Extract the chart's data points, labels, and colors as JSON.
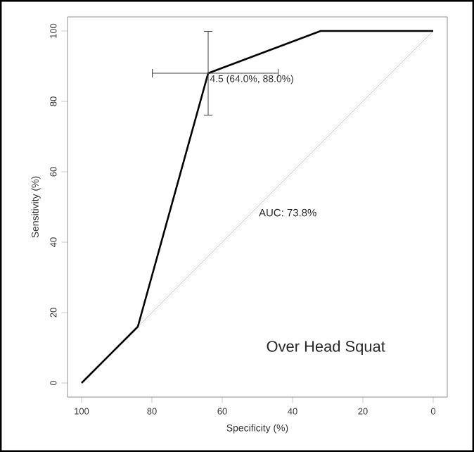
{
  "chart_data": {
    "type": "line",
    "xlabel": "Specificity (%)",
    "ylabel": "Sensitivity (%)",
    "xlim": [
      104,
      -4
    ],
    "ylim": [
      -4,
      104
    ],
    "xticks": [
      100,
      80,
      60,
      40,
      20,
      0
    ],
    "yticks": [
      0,
      20,
      40,
      60,
      80,
      100
    ],
    "marker": "none",
    "line_style": "solid",
    "series": [
      {
        "color": "#000000",
        "x": [
          100,
          84,
          64,
          32,
          0
        ],
        "values": [
          0,
          16,
          88,
          100,
          100
        ],
        "errors": [
          null,
          null,
          [
            76,
            100
          ],
          null,
          null
        ],
        "xerrors": [
          null,
          null,
          [
            44,
            80
          ],
          null,
          null
        ]
      },
      {
        "color": "#cccccc",
        "x": [
          100,
          0
        ],
        "values": [
          0,
          100
        ]
      }
    ],
    "annotations": [
      {
        "text": "4.5 (64.0%, 88.0%)",
        "x": 64,
        "y": 88
      },
      "AUC: 73.8%",
      "Over Head Squat"
    ]
  }
}
